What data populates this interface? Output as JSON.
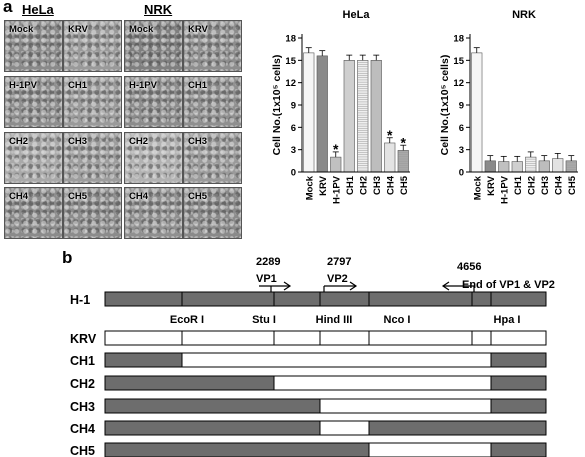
{
  "panel_a": {
    "letter": "a",
    "hela_header": "HeLa",
    "nrk_header": "NRK",
    "micro_labels": [
      [
        "Mock",
        "KRV",
        "Mock",
        "KRV"
      ],
      [
        "H-1PV",
        "CH1",
        "H-1PV",
        "CH1"
      ],
      [
        "CH2",
        "CH3",
        "CH2",
        "CH3"
      ],
      [
        "CH4",
        "CH5",
        "CH4",
        "CH5"
      ]
    ]
  },
  "chart_data": [
    {
      "type": "bar",
      "title": "HeLa",
      "ylabel": "Cell No.(1x10⁵ cells)",
      "xlabel": "",
      "categories": [
        "Mock",
        "KRV",
        "H-1PV",
        "CH1",
        "CH2",
        "CH3",
        "CH4",
        "CH5"
      ],
      "values": [
        16.0,
        15.6,
        2.0,
        15.0,
        15.0,
        15.0,
        3.9,
        2.9
      ],
      "ylim": [
        0,
        18
      ],
      "yticks": [
        "0",
        "3",
        "6",
        "9",
        "12",
        "15",
        "18"
      ],
      "significance": [
        "",
        "",
        "*",
        "",
        "",
        "",
        "*",
        "*"
      ],
      "error_bars": true,
      "grid": false
    },
    {
      "type": "bar",
      "title": "NRK",
      "ylabel": "Cell No.(1x10⁵ cells)",
      "xlabel": "",
      "categories": [
        "Mock",
        "KRV",
        "H-1PV",
        "CH1",
        "CH2",
        "CH3",
        "CH4",
        "CH5"
      ],
      "values": [
        16.0,
        1.5,
        1.4,
        1.4,
        2.0,
        1.5,
        1.8,
        1.5
      ],
      "ylim": [
        0,
        18
      ],
      "yticks": [
        "0",
        "3",
        "6",
        "9",
        "12",
        "15",
        "18"
      ],
      "significance": [
        "",
        "",
        "",
        "",
        "",
        "",
        "",
        ""
      ],
      "error_bars": true,
      "grid": false
    }
  ],
  "panel_b": {
    "letter": "b",
    "positions": [
      {
        "number": "2289",
        "label": "VP1"
      },
      {
        "number": "2797",
        "label": "VP2"
      },
      {
        "number": "4656",
        "label": "End of VP1 & VP2"
      }
    ],
    "sites": [
      "EcoR I",
      "Stu I",
      "Hind III",
      "Nco I",
      "Hpa I"
    ],
    "rows": [
      {
        "name": "H-1",
        "segments": [
          1,
          1,
          1,
          1,
          1,
          1,
          1
        ]
      },
      {
        "name": "KRV",
        "segments": [
          0,
          0,
          0,
          0,
          0,
          0,
          0
        ]
      },
      {
        "name": "CH1",
        "segments": [
          1,
          0,
          0,
          0,
          0,
          0,
          1
        ]
      },
      {
        "name": "CH2",
        "segments": [
          1,
          1,
          0,
          0,
          0,
          0,
          1
        ]
      },
      {
        "name": "CH3",
        "segments": [
          1,
          1,
          1,
          0,
          0,
          0,
          1
        ]
      },
      {
        "name": "CH4",
        "segments": [
          1,
          1,
          1,
          0,
          1,
          1,
          1
        ]
      },
      {
        "name": "CH5",
        "segments": [
          1,
          1,
          1,
          1,
          0,
          0,
          1
        ]
      }
    ],
    "colors": {
      "h1": "#6d6d6d",
      "krv": "#ffffff"
    }
  }
}
